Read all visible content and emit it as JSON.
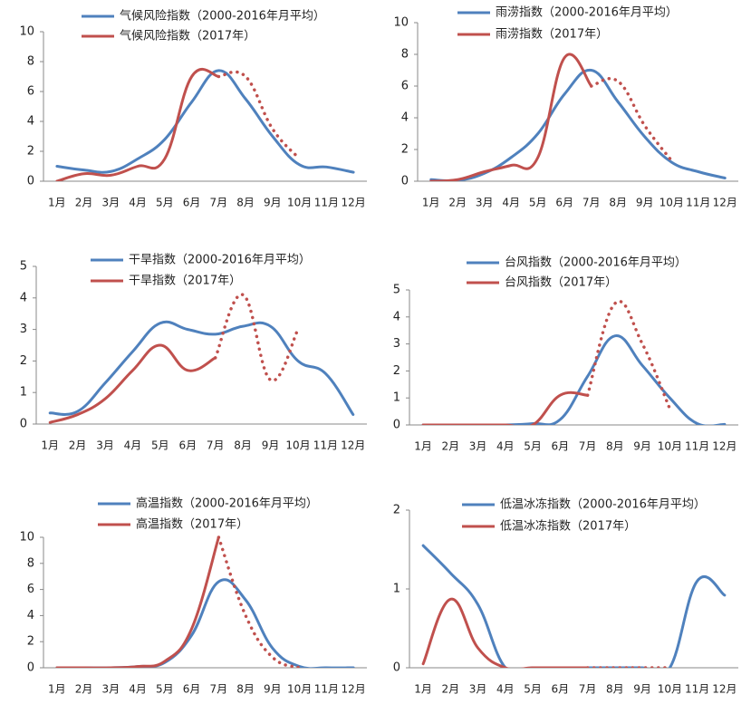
{
  "chart_data": [
    {
      "type": "line",
      "categories": [
        "1月",
        "2月",
        "3月",
        "4月",
        "5月",
        "6月",
        "7月",
        "8月",
        "9月",
        "10月",
        "11月",
        "12月"
      ],
      "ylim": [
        0,
        10
      ],
      "yticks": [
        0,
        2,
        4,
        6,
        8,
        10
      ],
      "series": [
        {
          "name": "气候风险指数（2000-2016年月平均）",
          "color": "#4f81bd",
          "values": [
            1.0,
            0.75,
            0.65,
            1.5,
            2.8,
            5.3,
            7.4,
            5.5,
            3.0,
            1.1,
            0.95,
            0.6
          ]
        },
        {
          "name": "气候风险指数（2017年）",
          "color": "#c0504d",
          "dotted_from": 6,
          "values": [
            0,
            0.5,
            0.4,
            1.0,
            1.5,
            7.0,
            7.0,
            7.0,
            3.5,
            1.5,
            null,
            null
          ]
        }
      ]
    },
    {
      "type": "line",
      "categories": [
        "1月",
        "2月",
        "3月",
        "4月",
        "5月",
        "6月",
        "7月",
        "8月",
        "9月",
        "10月",
        "11月",
        "12月"
      ],
      "ylim": [
        0,
        10
      ],
      "yticks": [
        0,
        2,
        4,
        6,
        8,
        10
      ],
      "series": [
        {
          "name": "雨涝指数（2000-2016年月平均）",
          "color": "#4f81bd",
          "values": [
            0.1,
            0.05,
            0.5,
            1.5,
            3.0,
            5.5,
            7.0,
            5.0,
            2.8,
            1.2,
            0.6,
            0.2
          ]
        },
        {
          "name": "雨涝指数（2017年）",
          "color": "#c0504d",
          "dotted_from": 6,
          "values": [
            0,
            0.1,
            0.6,
            1.0,
            1.5,
            7.8,
            6.0,
            6.3,
            3.5,
            1.3,
            null,
            null
          ]
        }
      ]
    },
    {
      "type": "line",
      "categories": [
        "1月",
        "2月",
        "3月",
        "4月",
        "5月",
        "6月",
        "7月",
        "8月",
        "9月",
        "10月",
        "11月",
        "12月"
      ],
      "ylim": [
        0,
        5
      ],
      "yticks": [
        0,
        1,
        2,
        3,
        4,
        5
      ],
      "series": [
        {
          "name": "干旱指数（2000-2016年月平均）",
          "color": "#4f81bd",
          "values": [
            0.35,
            0.4,
            1.3,
            2.3,
            3.2,
            3.0,
            2.85,
            3.1,
            3.1,
            2.0,
            1.6,
            0.3
          ]
        },
        {
          "name": "干旱指数（2017年）",
          "color": "#c0504d",
          "dotted_from": 6,
          "values": [
            0.05,
            0.3,
            0.8,
            1.7,
            2.5,
            1.7,
            2.1,
            4.1,
            1.4,
            3.0,
            null,
            null
          ]
        }
      ]
    },
    {
      "type": "line",
      "categories": [
        "1月",
        "2月",
        "3月",
        "4月",
        "5月",
        "6月",
        "7月",
        "8月",
        "9月",
        "10月",
        "11月",
        "12月"
      ],
      "ylim": [
        0,
        5
      ],
      "yticks": [
        0,
        1,
        2,
        3,
        4,
        5
      ],
      "series": [
        {
          "name": "台风指数（2000-2016年月平均）",
          "color": "#4f81bd",
          "values": [
            0,
            0,
            0,
            0,
            0.05,
            0.2,
            1.8,
            3.3,
            2.2,
            1.0,
            0.05,
            0.02
          ]
        },
        {
          "name": "台风指数（2017年）",
          "color": "#c0504d",
          "dotted_from": 6,
          "values": [
            0,
            0,
            0,
            0,
            0,
            1.1,
            1.1,
            4.5,
            3.0,
            0.6,
            null,
            null
          ]
        }
      ]
    },
    {
      "type": "line",
      "categories": [
        "1月",
        "2月",
        "3月",
        "4月",
        "5月",
        "6月",
        "7月",
        "8月",
        "9月",
        "10月",
        "11月",
        "12月"
      ],
      "ylim": [
        0,
        10
      ],
      "yticks": [
        0,
        2,
        4,
        6,
        8,
        10
      ],
      "series": [
        {
          "name": "高温指数（2000-2016年月平均）",
          "color": "#4f81bd",
          "values": [
            0,
            0,
            0,
            0.1,
            0.4,
            2.5,
            6.6,
            5.2,
            1.5,
            0.1,
            0,
            0
          ]
        },
        {
          "name": "高温指数（2017年）",
          "color": "#c0504d",
          "dotted_from": 6,
          "values": [
            0,
            0,
            0,
            0.1,
            0.5,
            3.0,
            10,
            4.0,
            0.8,
            0,
            null,
            null
          ]
        }
      ]
    },
    {
      "type": "line",
      "categories": [
        "1月",
        "2月",
        "3月",
        "4月",
        "5月",
        "6月",
        "7月",
        "8月",
        "9月",
        "10月",
        "11月",
        "12月"
      ],
      "ylim": [
        0,
        2
      ],
      "yticks": [
        0,
        1,
        2
      ],
      "series": [
        {
          "name": "低温冰冻指数（2000-2016年月平均）",
          "color": "#4f81bd",
          "values": [
            1.55,
            1.2,
            0.8,
            0,
            0,
            0,
            0,
            0,
            0,
            0,
            1.1,
            0.92
          ]
        },
        {
          "name": "低温冰冻指数（2017年）",
          "color": "#c0504d",
          "dotted_from": 6,
          "values": [
            0.05,
            0.87,
            0.25,
            0,
            0,
            0,
            0,
            0,
            0,
            0,
            null,
            null
          ]
        }
      ]
    }
  ]
}
